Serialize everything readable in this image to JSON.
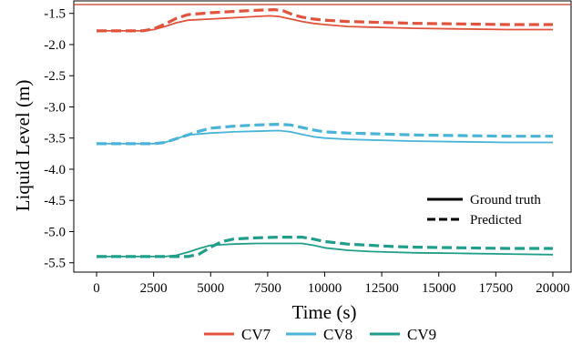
{
  "chart_data": {
    "type": "line",
    "xlabel": "Time (s)",
    "ylabel": "Liquid Level (m)",
    "xlim": [
      -1000,
      20800
    ],
    "ylim": [
      -5.65,
      -1.3
    ],
    "x_ticks": [
      0,
      2500,
      5000,
      7500,
      10000,
      12500,
      15000,
      17500,
      20000
    ],
    "x_tick_labels": [
      "0",
      "2500",
      "5000",
      "7500",
      "10000",
      "12500",
      "15000",
      "17500",
      "20000"
    ],
    "y_ticks": [
      -1.5,
      -2.0,
      -2.5,
      -3.0,
      -3.5,
      -4.0,
      -4.5,
      -5.0,
      -5.5
    ],
    "y_tick_labels": [
      "-1.5",
      "-2.0",
      "-2.5",
      "-3.0",
      "-3.5",
      "-4.0",
      "-4.5",
      "-5.0",
      "-5.5"
    ],
    "grid": false,
    "style_legend": {
      "placement": "center-right",
      "entries": [
        {
          "label": "Ground truth",
          "dash": "solid"
        },
        {
          "label": "Predicted",
          "dash": "dashed"
        }
      ]
    },
    "color_legend": {
      "placement": "bottom",
      "entries": [
        "CV7",
        "CV8",
        "CV9"
      ]
    },
    "series": [
      {
        "name": "CV7",
        "kind": "Ground truth",
        "color": "#e0533d",
        "dash": "solid",
        "x": [
          0,
          1000,
          2000,
          2500,
          3000,
          3500,
          4000,
          5000,
          6000,
          7000,
          7600,
          8000,
          8500,
          9000,
          9500,
          10000,
          11000,
          12000,
          13000,
          14000,
          16000,
          18000,
          20000
        ],
        "y": [
          -1.78,
          -1.78,
          -1.78,
          -1.76,
          -1.71,
          -1.65,
          -1.61,
          -1.59,
          -1.57,
          -1.55,
          -1.54,
          -1.55,
          -1.59,
          -1.63,
          -1.66,
          -1.68,
          -1.71,
          -1.72,
          -1.73,
          -1.74,
          -1.75,
          -1.76,
          -1.76
        ]
      },
      {
        "name": "CV7",
        "kind": "Predicted",
        "color": "#e0533d",
        "dash": "dashed",
        "x": [
          0,
          1000,
          2000,
          2500,
          3000,
          3500,
          4000,
          5000,
          6000,
          7000,
          7800,
          8200,
          8600,
          9000,
          9500,
          10000,
          11000,
          12000,
          13000,
          14000,
          16000,
          18000,
          20000
        ],
        "y": [
          -1.78,
          -1.78,
          -1.78,
          -1.75,
          -1.67,
          -1.58,
          -1.52,
          -1.49,
          -1.47,
          -1.45,
          -1.44,
          -1.46,
          -1.52,
          -1.56,
          -1.59,
          -1.61,
          -1.63,
          -1.64,
          -1.65,
          -1.66,
          -1.67,
          -1.68,
          -1.68
        ]
      },
      {
        "name": "CV8",
        "kind": "Ground truth",
        "color": "#4ab3d8",
        "dash": "solid",
        "x": [
          0,
          1000,
          2000,
          2500,
          3000,
          3500,
          4000,
          5000,
          6000,
          7000,
          8000,
          8500,
          9000,
          9500,
          10000,
          11000,
          12000,
          13000,
          14000,
          16000,
          18000,
          20000
        ],
        "y": [
          -3.59,
          -3.59,
          -3.59,
          -3.59,
          -3.57,
          -3.51,
          -3.45,
          -3.42,
          -3.4,
          -3.39,
          -3.38,
          -3.4,
          -3.44,
          -3.48,
          -3.5,
          -3.52,
          -3.53,
          -3.54,
          -3.55,
          -3.56,
          -3.57,
          -3.57
        ]
      },
      {
        "name": "CV8",
        "kind": "Predicted",
        "color": "#4ab3d8",
        "dash": "dashed",
        "x": [
          0,
          1000,
          2000,
          2500,
          3000,
          3500,
          4000,
          4500,
          5000,
          6000,
          7000,
          8000,
          8500,
          9000,
          9500,
          10000,
          11000,
          12000,
          13000,
          14000,
          16000,
          18000,
          20000
        ],
        "y": [
          -3.59,
          -3.59,
          -3.59,
          -3.59,
          -3.57,
          -3.51,
          -3.45,
          -3.39,
          -3.34,
          -3.31,
          -3.29,
          -3.28,
          -3.29,
          -3.33,
          -3.37,
          -3.4,
          -3.42,
          -3.43,
          -3.44,
          -3.45,
          -3.46,
          -3.47,
          -3.47
        ]
      },
      {
        "name": "CV9",
        "kind": "Ground truth",
        "color": "#1f9e89",
        "dash": "solid",
        "x": [
          0,
          1000,
          2000,
          3000,
          3500,
          4000,
          4500,
          5000,
          6000,
          7000,
          8000,
          9000,
          9500,
          10000,
          11000,
          12000,
          13000,
          14000,
          16000,
          18000,
          20000
        ],
        "y": [
          -5.4,
          -5.4,
          -5.4,
          -5.4,
          -5.38,
          -5.33,
          -5.27,
          -5.22,
          -5.2,
          -5.19,
          -5.19,
          -5.19,
          -5.22,
          -5.26,
          -5.3,
          -5.32,
          -5.33,
          -5.34,
          -5.35,
          -5.36,
          -5.37
        ]
      },
      {
        "name": "CV9",
        "kind": "Predicted",
        "color": "#1f9e89",
        "dash": "dashed",
        "x": [
          0,
          1000,
          2000,
          3000,
          4000,
          4500,
          5000,
          5500,
          6000,
          7000,
          8000,
          9000,
          9500,
          10000,
          11000,
          12000,
          13000,
          14000,
          16000,
          18000,
          20000
        ],
        "y": [
          -5.4,
          -5.4,
          -5.4,
          -5.4,
          -5.4,
          -5.36,
          -5.25,
          -5.16,
          -5.12,
          -5.1,
          -5.09,
          -5.09,
          -5.12,
          -5.16,
          -5.2,
          -5.22,
          -5.24,
          -5.25,
          -5.26,
          -5.27,
          -5.27
        ]
      }
    ]
  }
}
